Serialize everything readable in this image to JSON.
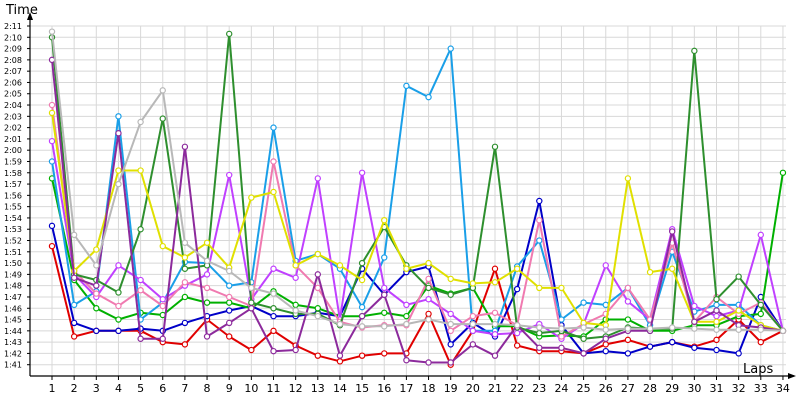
{
  "chart_data": {
    "type": "line",
    "title": "",
    "ylabel": "Time",
    "xlabel": "Laps",
    "x": [
      1,
      2,
      3,
      4,
      5,
      6,
      7,
      8,
      9,
      10,
      11,
      12,
      13,
      14,
      15,
      16,
      17,
      18,
      19,
      20,
      21,
      22,
      23,
      24,
      25,
      26,
      27,
      28,
      29,
      30,
      31,
      32,
      33,
      34
    ],
    "y_ticks": [
      "1:41",
      "1:42",
      "1:43",
      "1:44",
      "1:45",
      "1:46",
      "1:47",
      "1:48",
      "1:49",
      "1:50",
      "1:51",
      "1:52",
      "1:53",
      "1:54",
      "1:55",
      "1:56",
      "1:57",
      "1:58",
      "1:59",
      "2:00",
      "2:01",
      "2:02",
      "2:03",
      "2:04",
      "2:05",
      "2:06",
      "2:07",
      "2:08",
      "2:09",
      "2:10",
      "2:11"
    ],
    "ylim_seconds": [
      100,
      131
    ],
    "grid": true,
    "series": [
      {
        "color": "#e00000",
        "values": [
          111.5,
          103.5,
          104,
          104,
          104,
          103,
          102.8,
          105,
          103.5,
          102.3,
          104,
          102.7,
          101.8,
          101.3,
          101.8,
          102,
          102,
          105.5,
          101,
          104,
          109.5,
          102.7,
          102.2,
          102.2,
          102,
          102.8,
          103.2,
          102.6,
          103,
          102.6,
          103.2,
          105,
          103,
          104
        ]
      },
      {
        "color": "#0000c8",
        "values": [
          113.3,
          104.7,
          104,
          104,
          104.2,
          104,
          104.7,
          105.3,
          105.8,
          106.2,
          105.3,
          105.3,
          105.6,
          105.3,
          109.5,
          107.2,
          109.2,
          109.7,
          102.8,
          104.7,
          103.5,
          107.7,
          115.5,
          104.5,
          102,
          102.2,
          102,
          102.6,
          103,
          102.5,
          102.3,
          102,
          107,
          104
        ]
      },
      {
        "color": "#00b000",
        "values": [
          117.5,
          108.5,
          106,
          105,
          105.6,
          105.4,
          107,
          106.5,
          106.5,
          106,
          107.5,
          106.3,
          106,
          105.3,
          105.3,
          105.6,
          105.3,
          108,
          107.3,
          107.8,
          104.4,
          104.4,
          103.5,
          103.6,
          103.5,
          105,
          105,
          104,
          104,
          104.5,
          104.5,
          105.3,
          105.5,
          118
        ]
      },
      {
        "color": "#1a9fe8",
        "values": [
          119,
          106.3,
          107.5,
          123,
          105,
          106.5,
          110.1,
          110,
          108,
          108.3,
          122,
          110.2,
          110.8,
          109.5,
          106.1,
          110.5,
          125.7,
          124.7,
          129,
          104,
          104,
          109.7,
          112,
          105,
          106.5,
          106.3,
          107.8,
          104.5,
          111,
          105.7,
          106.3,
          106.3,
          104.5,
          104
        ]
      },
      {
        "color": "#c040ff",
        "values": [
          120.8,
          109,
          107,
          109.8,
          108.5,
          106.8,
          108,
          109,
          117.8,
          106.8,
          109.5,
          108.7,
          117.5,
          105,
          118,
          107.8,
          106.3,
          106.8,
          105.5,
          104,
          103.7,
          103.8,
          104.6,
          103.3,
          104.6,
          109.8,
          106.6,
          105,
          113,
          106.2,
          105.3,
          105.8,
          112.5,
          104
        ]
      },
      {
        "color": "#f07ab0",
        "values": [
          124,
          109.3,
          107.3,
          106.2,
          107.6,
          106.2,
          108.3,
          107.8,
          107,
          106.2,
          119,
          109.8,
          107.8,
          104.8,
          104.3,
          104.5,
          104.5,
          108.6,
          104,
          105.3,
          105.6,
          104.5,
          113.8,
          103.5,
          104.6,
          105.5,
          107.8,
          105,
          111.8,
          104.8,
          107,
          105.5,
          106.5,
          104
        ]
      },
      {
        "color": "#2e8f2e",
        "values": [
          130,
          109,
          108.5,
          107.4,
          113,
          122.8,
          109.5,
          109.8,
          130.3,
          106.5,
          106,
          105.5,
          105.5,
          104.5,
          110,
          113.2,
          109.8,
          107.8,
          107.2,
          107.8,
          120.3,
          104.3,
          103.8,
          104,
          103.3,
          103.5,
          104.3,
          104.2,
          104.2,
          128.8,
          106.8,
          108.8,
          106.3,
          104
        ]
      },
      {
        "color": "#e0e000",
        "values": [
          123.3,
          109.3,
          111.2,
          118.2,
          118.2,
          111.5,
          110.5,
          111.8,
          109.6,
          115.8,
          116.3,
          109.8,
          110.8,
          109.8,
          108.5,
          113.8,
          109.5,
          110,
          108.6,
          108.2,
          108.3,
          109.5,
          107.8,
          107.8,
          104.7,
          104.5,
          117.5,
          109.2,
          109.5,
          104.8,
          104.8,
          105.8,
          104.5,
          104
        ]
      },
      {
        "color": "#8c2a9c",
        "values": [
          128,
          108.7,
          108,
          121.5,
          103.3,
          103.3,
          120.3,
          103.5,
          104.7,
          106,
          102.2,
          102.3,
          109,
          101.8,
          105.3,
          107.2,
          101.4,
          101.2,
          101.2,
          102.8,
          101.8,
          104.5,
          102.5,
          102.5,
          102,
          103.3,
          104,
          104,
          112.8,
          104.8,
          105.8,
          104.5,
          104.3,
          104
        ]
      },
      {
        "color": "#b8b8b8",
        "values": [
          130.5,
          112.5,
          109.8,
          117,
          122.5,
          125.3,
          111.8,
          110.2,
          109.3,
          107.8,
          107.3,
          105.8,
          105.3,
          104.6,
          104.4,
          104.4,
          104.6,
          105,
          104.6,
          104.6,
          104.6,
          104.5,
          104.3,
          104.2,
          104.3,
          104.1,
          104.2,
          104.2,
          104.3,
          104.2,
          104.1,
          104.1,
          104.1,
          104
        ]
      }
    ]
  }
}
